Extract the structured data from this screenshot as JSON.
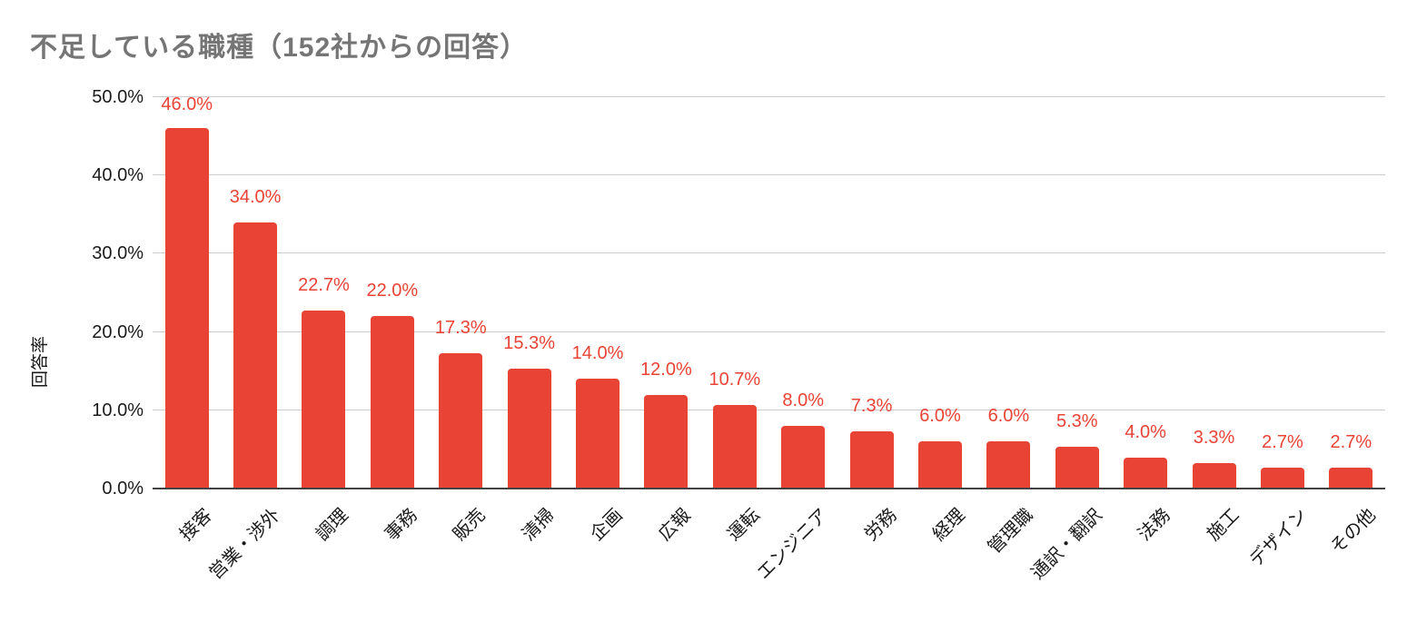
{
  "chart_data": {
    "type": "bar",
    "title": "不足している職種（152社からの回答）",
    "ylabel": "回答率",
    "xlabel": "",
    "categories": [
      "接客",
      "営業・渉外",
      "調理",
      "事務",
      "販売",
      "清掃",
      "企画",
      "広報",
      "運転",
      "エンジニア",
      "労務",
      "経理",
      "管理職",
      "通訳・翻訳",
      "法務",
      "施工",
      "デザイン",
      "その他"
    ],
    "values": [
      46.0,
      34.0,
      22.7,
      22.0,
      17.3,
      15.3,
      14.0,
      12.0,
      10.7,
      8.0,
      7.3,
      6.0,
      6.0,
      5.3,
      4.0,
      3.3,
      2.7,
      2.7
    ],
    "value_labels": [
      "46.0%",
      "34.0%",
      "22.7%",
      "22.0%",
      "17.3%",
      "15.3%",
      "14.0%",
      "12.0%",
      "10.7%",
      "8.0%",
      "7.3%",
      "6.0%",
      "6.0%",
      "5.3%",
      "4.0%",
      "3.3%",
      "2.7%",
      "2.7%"
    ],
    "y_ticks": [
      "0.0%",
      "10.0%",
      "20.0%",
      "30.0%",
      "40.0%",
      "50.0%"
    ],
    "y_tick_values": [
      0,
      10,
      20,
      30,
      40,
      50
    ],
    "ylim": [
      0,
      50
    ],
    "grid": true,
    "legend": "none",
    "bar_color": "#e94335",
    "label_color": "#e94335",
    "title_color": "#757575",
    "axis_text_color": "#1a1a1a",
    "gridline_color": "#cccccc",
    "baseline_color": "#424242"
  }
}
